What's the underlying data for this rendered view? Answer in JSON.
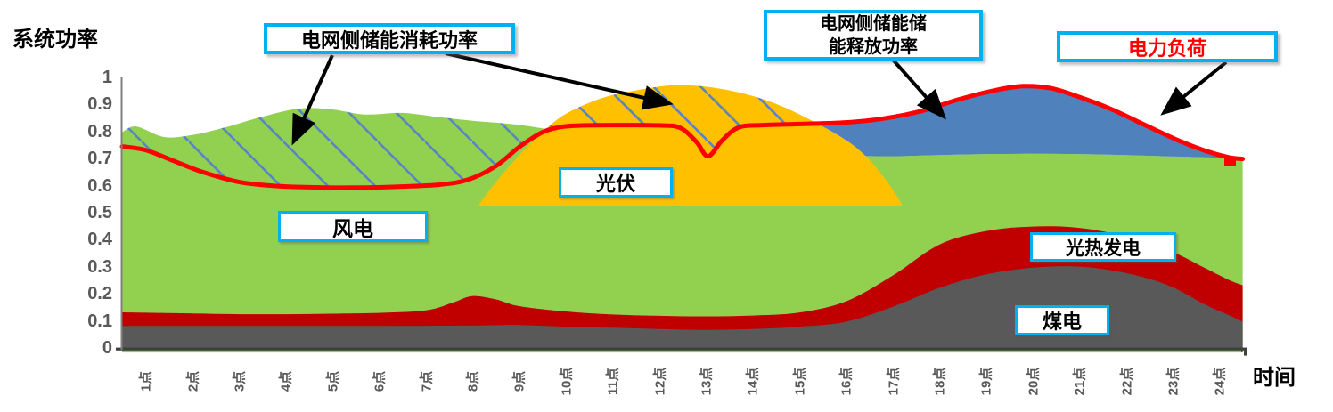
{
  "y_axis": {
    "title": "系统功率",
    "tick_labels": [
      "1",
      "0.9",
      "0.8",
      "0.7",
      "0.6",
      "0.5",
      "0.4",
      "0.3",
      "0.2",
      "0.1",
      "0"
    ]
  },
  "x_axis": {
    "title": "时间",
    "labels": [
      "1点",
      "2点",
      "3点",
      "4点",
      "5点",
      "6点",
      "7点",
      "8点",
      "9点",
      "10点",
      "11点",
      "12点",
      "13点",
      "14点",
      "15点",
      "16点",
      "17点",
      "18点",
      "19点",
      "20点",
      "21点",
      "22点",
      "23点",
      "24点"
    ]
  },
  "callouts": {
    "charge": "电网侧储能消耗功率",
    "discharge_line1": "电网侧储能储",
    "discharge_line2": "能释放功率",
    "load": "电力负荷"
  },
  "area_labels": {
    "wind": "风电",
    "pv": "光伏",
    "csp": "光热发电",
    "coal": "煤电"
  },
  "colors": {
    "wind": "#92D050",
    "pv": "#FFC000",
    "storage_discharge": "#4F81BD",
    "csp": "#C00000",
    "coal": "#595959",
    "load_line": "#FF0000",
    "hatch": "#5B84C4",
    "callout_border": "#00B0F0",
    "axis_text": "#595959"
  },
  "chart_data": {
    "type": "area",
    "title": "",
    "xlabel": "时间",
    "ylabel": "系统功率",
    "x_range_hours": [
      1,
      24
    ],
    "ylim": [
      0,
      1
    ],
    "grid": false,
    "legend": "inline callout boxes",
    "series": [
      {
        "id": "coal",
        "name": "煤电",
        "kind": "stacked_area_top",
        "color": "#595959",
        "points": [
          [
            0.5,
            0.085
          ],
          [
            2,
            0.085
          ],
          [
            4,
            0.085
          ],
          [
            6,
            0.085
          ],
          [
            8,
            0.086
          ],
          [
            9,
            0.088
          ],
          [
            10,
            0.082
          ],
          [
            11,
            0.078
          ],
          [
            12,
            0.073
          ],
          [
            13,
            0.07
          ],
          [
            14,
            0.073
          ],
          [
            15,
            0.082
          ],
          [
            16,
            0.1
          ],
          [
            17,
            0.155
          ],
          [
            18,
            0.225
          ],
          [
            19,
            0.275
          ],
          [
            20,
            0.3
          ],
          [
            20.8,
            0.305
          ],
          [
            21.5,
            0.295
          ],
          [
            22.3,
            0.268
          ],
          [
            23,
            0.228
          ],
          [
            23.7,
            0.163
          ],
          [
            24.2,
            0.125
          ],
          [
            24.5,
            0.1
          ]
        ]
      },
      {
        "id": "csp",
        "name": "光热发电",
        "kind": "stacked_area_top",
        "color": "#C00000",
        "points": [
          [
            0.5,
            0.135
          ],
          [
            2,
            0.131
          ],
          [
            3,
            0.128
          ],
          [
            4,
            0.128
          ],
          [
            5,
            0.13
          ],
          [
            6,
            0.133
          ],
          [
            7,
            0.142
          ],
          [
            7.6,
            0.172
          ],
          [
            8,
            0.195
          ],
          [
            8.5,
            0.183
          ],
          [
            9,
            0.158
          ],
          [
            10,
            0.138
          ],
          [
            11,
            0.127
          ],
          [
            12,
            0.122
          ],
          [
            13,
            0.12
          ],
          [
            14,
            0.123
          ],
          [
            15,
            0.134
          ],
          [
            16,
            0.175
          ],
          [
            17,
            0.27
          ],
          [
            18,
            0.385
          ],
          [
            19,
            0.435
          ],
          [
            20,
            0.452
          ],
          [
            21,
            0.447
          ],
          [
            22,
            0.415
          ],
          [
            23,
            0.358
          ],
          [
            23.7,
            0.298
          ],
          [
            24.2,
            0.255
          ],
          [
            24.5,
            0.235
          ]
        ]
      },
      {
        "id": "wind",
        "name": "风电",
        "kind": "stacked_area_top",
        "color": "#92D050",
        "points": [
          [
            0.5,
            0.8
          ],
          [
            0.8,
            0.822
          ],
          [
            1.4,
            0.783
          ],
          [
            2,
            0.79
          ],
          [
            2.7,
            0.818
          ],
          [
            3.5,
            0.858
          ],
          [
            4.3,
            0.888
          ],
          [
            5,
            0.885
          ],
          [
            5.7,
            0.866
          ],
          [
            6.5,
            0.872
          ],
          [
            7.3,
            0.856
          ],
          [
            8,
            0.843
          ],
          [
            9,
            0.828
          ],
          [
            10,
            0.8
          ],
          [
            11,
            0.772
          ],
          [
            12,
            0.752
          ],
          [
            13,
            0.737
          ],
          [
            14,
            0.726
          ],
          [
            15,
            0.72
          ],
          [
            16,
            0.714
          ],
          [
            17,
            0.712
          ],
          [
            18,
            0.716
          ],
          [
            19,
            0.72
          ],
          [
            20,
            0.721
          ],
          [
            21,
            0.72
          ],
          [
            22,
            0.716
          ],
          [
            23,
            0.711
          ],
          [
            24,
            0.706
          ],
          [
            24.5,
            0.7
          ]
        ]
      },
      {
        "id": "pv",
        "name": "光伏",
        "kind": "dome_area",
        "color": "#FFC000",
        "base": 0.528,
        "points": [
          [
            8.15,
            0.535
          ],
          [
            8.5,
            0.615
          ],
          [
            9,
            0.715
          ],
          [
            9.5,
            0.8
          ],
          [
            10,
            0.868
          ],
          [
            10.8,
            0.928
          ],
          [
            11.6,
            0.958
          ],
          [
            12.3,
            0.974
          ],
          [
            13,
            0.969
          ],
          [
            13.8,
            0.944
          ],
          [
            14.5,
            0.906
          ],
          [
            15.2,
            0.85
          ],
          [
            16,
            0.772
          ],
          [
            16.5,
            0.7
          ],
          [
            16.9,
            0.615
          ],
          [
            17.2,
            0.535
          ]
        ]
      },
      {
        "id": "storage_discharge",
        "name": "电网侧储能储能释放功率",
        "kind": "area_between",
        "color": "#4F81BD",
        "between": [
          "load",
          "wind"
        ],
        "hours": [
          15,
          24.5
        ]
      },
      {
        "id": "storage_charge",
        "name": "电网侧储能消耗功率",
        "kind": "hatched_region",
        "color": "#5B84C4",
        "between": [
          "generation_top",
          "load"
        ],
        "hours": [
          0.5,
          15.2
        ]
      },
      {
        "id": "load",
        "name": "电力负荷",
        "kind": "line",
        "color": "#FF0000",
        "points": [
          [
            0.5,
            0.748
          ],
          [
            1,
            0.735
          ],
          [
            1.6,
            0.695
          ],
          [
            2.2,
            0.655
          ],
          [
            3,
            0.617
          ],
          [
            3.8,
            0.602
          ],
          [
            4.6,
            0.597
          ],
          [
            5.5,
            0.596
          ],
          [
            6.5,
            0.6
          ],
          [
            7.3,
            0.607
          ],
          [
            7.9,
            0.625
          ],
          [
            8.5,
            0.675
          ],
          [
            9,
            0.745
          ],
          [
            9.5,
            0.8
          ],
          [
            9.9,
            0.82
          ],
          [
            10.4,
            0.826
          ],
          [
            11.2,
            0.827
          ],
          [
            12,
            0.826
          ],
          [
            12.45,
            0.817
          ],
          [
            12.8,
            0.765
          ],
          [
            13.05,
            0.712
          ],
          [
            13.35,
            0.77
          ],
          [
            13.7,
            0.818
          ],
          [
            14.2,
            0.827
          ],
          [
            15,
            0.831
          ],
          [
            16,
            0.837
          ],
          [
            16.8,
            0.851
          ],
          [
            17.6,
            0.878
          ],
          [
            18.4,
            0.921
          ],
          [
            19.2,
            0.956
          ],
          [
            19.8,
            0.971
          ],
          [
            20.4,
            0.963
          ],
          [
            21,
            0.931
          ],
          [
            21.7,
            0.885
          ],
          [
            22.4,
            0.828
          ],
          [
            23.1,
            0.772
          ],
          [
            23.7,
            0.732
          ],
          [
            24.2,
            0.708
          ],
          [
            24.5,
            0.702
          ]
        ]
      }
    ]
  }
}
